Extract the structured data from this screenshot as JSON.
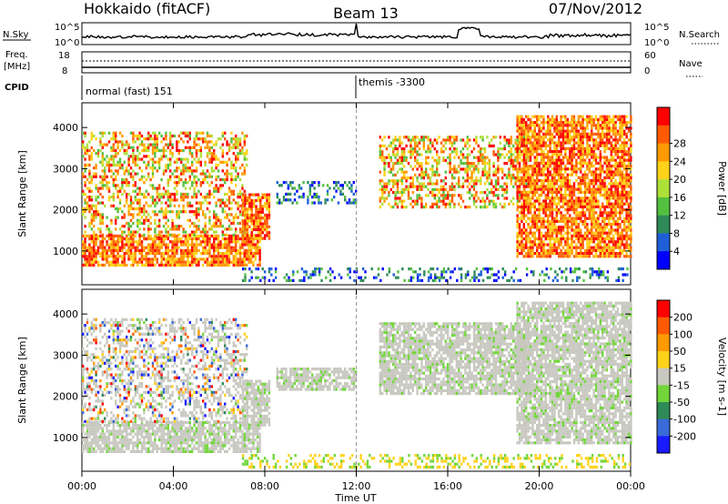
{
  "header": {
    "station": "Hokkaido (fitACF)",
    "beam": "Beam 13",
    "date": "07/Nov/2012"
  },
  "top_panels": {
    "nsky_label": "N.Sky",
    "nsky_ticks": [
      "10^5",
      "10^0"
    ],
    "nsearch_label": "N.Search",
    "nsearch_ticks": [
      "10^5",
      "10^0"
    ],
    "freq_label": "Freq.",
    "freq_unit": "[MHz]",
    "freq_ticks": [
      "18",
      "8"
    ],
    "nave_label": "Nave",
    "nave_ticks": [
      "60",
      "0"
    ],
    "cpid_label": "CPID",
    "cpid_entries": [
      {
        "time_h": 0.05,
        "text": "normal (fast) 151"
      },
      {
        "time_h": 12.0,
        "text": "themis -3300"
      }
    ]
  },
  "chart_data": [
    {
      "type": "heatmap",
      "name": "power",
      "ylabel": "Slant Range [km]",
      "xlabel": "Time UT",
      "xlim": [
        0,
        24
      ],
      "ylim": [
        180,
        4600
      ],
      "x_ticks": [
        "00:00",
        "04:00",
        "08:00",
        "12:00",
        "16:00",
        "20:00",
        "00:00"
      ],
      "y_ticks": [
        1000,
        2000,
        3000,
        4000
      ],
      "colorbar": {
        "label": "Power [dB]",
        "ticks": [
          "4",
          "8",
          "12",
          "16",
          "20",
          "24",
          "28"
        ],
        "colors": [
          "#0000ff",
          "#1e5fd8",
          "#2e8b57",
          "#55c040",
          "#aee03a",
          "#ffd21a",
          "#ff9a00",
          "#ff5a00",
          "#ff0000"
        ]
      },
      "echo_regions": [
        {
          "t0": 0.0,
          "t1": 7.8,
          "r0": 650,
          "r1": 1400,
          "level": "high"
        },
        {
          "t0": 0.0,
          "t1": 7.2,
          "r0": 1400,
          "r1": 3900,
          "level": "mixed"
        },
        {
          "t0": 7.0,
          "t1": 8.2,
          "r0": 1300,
          "r1": 2400,
          "level": "high"
        },
        {
          "t0": 8.5,
          "t1": 12.0,
          "r0": 2200,
          "r1": 2700,
          "level": "low"
        },
        {
          "t0": 13.0,
          "t1": 19.5,
          "r0": 2100,
          "r1": 3800,
          "level": "mixed"
        },
        {
          "t0": 19.0,
          "t1": 24.0,
          "r0": 850,
          "r1": 4300,
          "level": "high"
        },
        {
          "t0": 7.0,
          "t1": 24.0,
          "r0": 250,
          "r1": 600,
          "level": "low"
        }
      ]
    },
    {
      "type": "heatmap",
      "name": "velocity",
      "ylabel": "Slant Range [km]",
      "xlabel": "Time UT",
      "xlim": [
        0,
        24
      ],
      "ylim": [
        180,
        4600
      ],
      "x_ticks": [
        "00:00",
        "04:00",
        "08:00",
        "12:00",
        "16:00",
        "20:00",
        "00:00"
      ],
      "y_ticks": [
        1000,
        2000,
        3000,
        4000
      ],
      "colorbar": {
        "label": "Velocity [m s-1]",
        "ticks": [
          "200",
          "100",
          "50",
          "15",
          "-15",
          "-50",
          "-100",
          "-200"
        ],
        "colors": [
          "#1a1aff",
          "#3a6ad8",
          "#2e8b57",
          "#72d63a",
          "#c8c8c0",
          "#ffd21a",
          "#ff9a00",
          "#ff5a00",
          "#ff0000"
        ]
      },
      "echo_regions": [
        {
          "t0": 0.0,
          "t1": 7.8,
          "r0": 650,
          "r1": 1400,
          "level": "ground"
        },
        {
          "t0": 0.0,
          "t1": 7.2,
          "r0": 1400,
          "r1": 3900,
          "level": "mixed"
        },
        {
          "t0": 7.0,
          "t1": 8.2,
          "r0": 1300,
          "r1": 2400,
          "level": "ground"
        },
        {
          "t0": 8.5,
          "t1": 12.0,
          "r0": 2200,
          "r1": 2700,
          "level": "ground"
        },
        {
          "t0": 13.0,
          "t1": 19.5,
          "r0": 2100,
          "r1": 3800,
          "level": "ground"
        },
        {
          "t0": 19.0,
          "t1": 24.0,
          "r0": 850,
          "r1": 4300,
          "level": "ground"
        },
        {
          "t0": 7.0,
          "t1": 24.0,
          "r0": 250,
          "r1": 600,
          "level": "low"
        }
      ]
    }
  ]
}
